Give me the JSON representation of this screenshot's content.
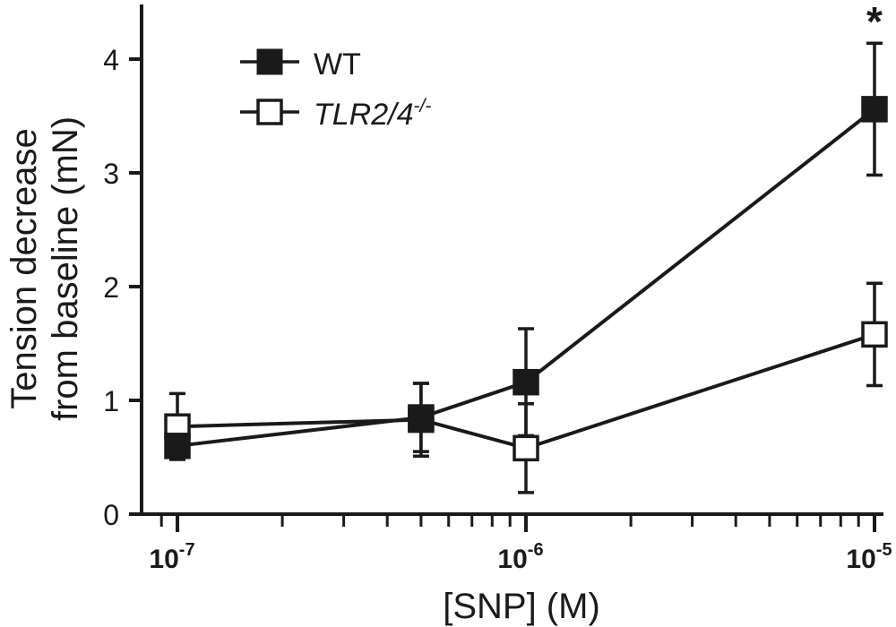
{
  "chart_data": {
    "type": "line",
    "title": "",
    "xlabel": "[SNP] (M)",
    "ylabel_line1": "Tension decrease",
    "ylabel_line2": "from baseline (mN)",
    "xscale": "log",
    "xlim": [
      7e-08,
      1.15e-05
    ],
    "ylim": [
      0,
      4.5
    ],
    "yticks": [
      {
        "value": 0,
        "label": "0"
      },
      {
        "value": 1,
        "label": "1"
      },
      {
        "value": 2,
        "label": "2"
      },
      {
        "value": 3,
        "label": "3"
      },
      {
        "value": 4,
        "label": "4"
      }
    ],
    "xticks": [
      {
        "value": 1e-07,
        "base": "10",
        "exp": "-7"
      },
      {
        "value": 1e-06,
        "base": "10",
        "exp": "-6"
      },
      {
        "value": 1e-05,
        "base": "10",
        "exp": "-5"
      }
    ],
    "legend_position": "top-left",
    "series": [
      {
        "name": "WT",
        "marker": "filled-square",
        "color": "#1a1a1a",
        "points": [
          {
            "x": 1e-07,
            "y": 0.6,
            "err": 0.1
          },
          {
            "x": 5e-07,
            "y": 0.85,
            "err": 0.3
          },
          {
            "x": 1e-06,
            "y": 1.16,
            "err": 0.47
          },
          {
            "x": 1e-05,
            "y": 3.56,
            "err": 0.58
          }
        ]
      },
      {
        "name": "TLR2/4",
        "name_sup": "-/-",
        "marker": "open-square",
        "color": "#1a1a1a",
        "points": [
          {
            "x": 1e-07,
            "y": 0.77,
            "err": 0.29
          },
          {
            "x": 5e-07,
            "y": 0.83,
            "err": 0.32
          },
          {
            "x": 1e-06,
            "y": 0.58,
            "err": 0.39
          },
          {
            "x": 1e-05,
            "y": 1.58,
            "err": 0.45
          }
        ]
      }
    ],
    "annotations": [
      {
        "text": "*",
        "x": 1e-05,
        "anchor": "top"
      }
    ]
  }
}
